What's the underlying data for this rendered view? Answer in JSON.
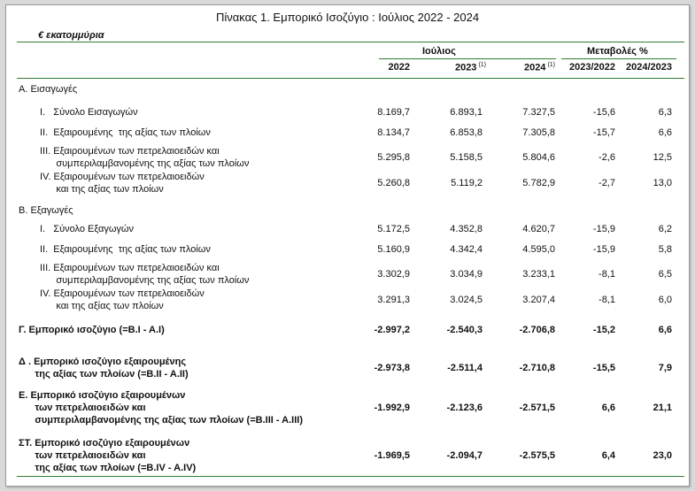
{
  "title": "Πίνακας 1. Εμπορικό Ισοζύγιο :  Ιούλιος 2022  - 2024",
  "unit": "€ εκατομμύρια",
  "header": {
    "group1": "Ιούλιος",
    "group2": "Μεταβολές %",
    "cols": [
      "2022",
      "2023",
      "2024",
      "2023/2022",
      "2024/2023"
    ],
    "note_2023": "(1)",
    "note_2024": "(1)"
  },
  "rows": [
    {
      "type": "section",
      "label": [
        "Α. Εισαγωγές"
      ]
    },
    {
      "type": "item",
      "label": [
        "I.   Σύνολο Εισαγωγών"
      ],
      "values": [
        "8.169,7",
        "6.893,1",
        "7.327,5",
        "-15,6",
        "6,3"
      ]
    },
    {
      "type": "item",
      "label": [
        "II.  Εξαιρουμένης  της αξίας των πλοίων"
      ],
      "values": [
        "8.134,7",
        "6.853,8",
        "7.305,8",
        "-15,7",
        "6,6"
      ]
    },
    {
      "type": "item",
      "label": [
        "III. Εξαιρουμένων των πετρελαιοειδών και",
        "      συμπεριλαμβανομένης της αξίας των πλοίων"
      ],
      "values": [
        "5.295,8",
        "5.158,5",
        "5.804,6",
        "-2,6",
        "12,5"
      ]
    },
    {
      "type": "item",
      "label": [
        "IV. Εξαιρουμένων των πετρελαιοειδών",
        "      και της αξίας των πλοίων"
      ],
      "values": [
        "5.260,8",
        "5.119,2",
        "5.782,9",
        "-2,7",
        "13,0"
      ]
    },
    {
      "type": "section",
      "label": [
        "Β. Εξαγωγές"
      ]
    },
    {
      "type": "item",
      "label": [
        "I.   Σύνολο Εξαγωγών"
      ],
      "values": [
        "5.172,5",
        "4.352,8",
        "4.620,7",
        "-15,9",
        "6,2"
      ]
    },
    {
      "type": "item",
      "label": [
        "II.  Εξαιρουμένης  της αξίας των πλοίων"
      ],
      "values": [
        "5.160,9",
        "4.342,4",
        "4.595,0",
        "-15,9",
        "5,8"
      ]
    },
    {
      "type": "item",
      "label": [
        "III. Εξαιρουμένων των πετρελαιοειδών και",
        "      συμπεριλαμβανομένης της αξίας των πλοίων"
      ],
      "values": [
        "3.302,9",
        "3.034,9",
        "3.233,1",
        "-8,1",
        "6,5"
      ]
    },
    {
      "type": "item",
      "label": [
        "IV. Εξαιρουμένων των πετρελαιοειδών",
        "      και της αξίας των πλοίων"
      ],
      "values": [
        "3.291,3",
        "3.024,5",
        "3.207,4",
        "-8,1",
        "6,0"
      ]
    },
    {
      "type": "total",
      "label": [
        "Γ. Εμπορικό ισοζύγιο (=B.I - A.I)"
      ],
      "values": [
        "-2.997,2",
        "-2.540,3",
        "-2.706,8",
        "-15,2",
        "6,6"
      ]
    },
    {
      "type": "total",
      "label": [
        "Δ . Εμπορικό ισοζύγιο εξαιρουμένης",
        "      της αξίας των πλοίων (=B.II - A.II)"
      ],
      "values": [
        "-2.973,8",
        "-2.511,4",
        "-2.710,8",
        "-15,5",
        "7,9"
      ]
    },
    {
      "type": "total",
      "label": [
        "Ε. Εμπορικό ισοζύγιο εξαιρουμένων",
        "      των πετρελαιοειδών και",
        "      συμπεριλαμβανομένης της αξίας των πλοίων (=B.III - A.III)"
      ],
      "values": [
        "-1.992,9",
        "-2.123,6",
        "-2.571,5",
        "6,6",
        "21,1"
      ]
    },
    {
      "type": "total",
      "label": [
        "ΣΤ. Εμπορικό ισοζύγιο εξαιρουμένων",
        "      των πετρελαιοειδών και",
        "      της αξίας των πλοίων (=B.IV - A.IV)"
      ],
      "values": [
        "-1.969,5",
        "-2.094,7",
        "-2.575,5",
        "6,4",
        "23,0"
      ]
    }
  ]
}
